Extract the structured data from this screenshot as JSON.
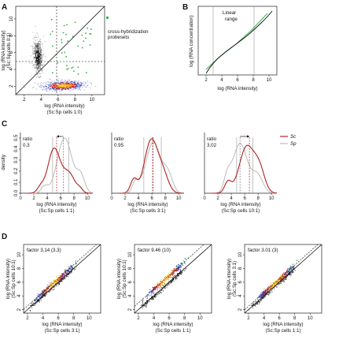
{
  "panels": {
    "A": {
      "label": "A",
      "xticks": [
        "2",
        "4",
        "6",
        "8",
        "10"
      ],
      "yticks": [
        "2",
        "4",
        "6",
        "8",
        "10"
      ],
      "xlabel": [
        "log (RNA intensity)",
        "(Sc:Sp cells 1:0)"
      ],
      "ylabel": [
        "log (RNA intensity)",
        "(Sc:Sp cells 0:1)"
      ],
      "annotation": [
        "cross-hybridization",
        "probesets"
      ]
    },
    "B": {
      "label": "B",
      "xticks": [
        "2",
        "4",
        "6",
        "8",
        "10"
      ],
      "ylabel": "log (RNA concentration)",
      "xlabel": "log (RNA intensity)",
      "range_label": [
        "Linear",
        "range"
      ]
    },
    "C": {
      "label": "C",
      "yticks": [
        "0.0",
        "0.1",
        "0.2",
        "0.3",
        "0.4",
        "0.5"
      ],
      "xticks": [
        "0",
        "2",
        "4",
        "6",
        "8",
        "10"
      ],
      "ylabel": "density",
      "legend": [
        "Sc",
        "Sp"
      ],
      "subplots": [
        {
          "ratio_label": "ratio",
          "ratio": "0.3",
          "xlabel": [
            "log (RNA intensity)",
            "(Sc:Sp cells 1:1)"
          ]
        },
        {
          "ratio_label": "ratio",
          "ratio": "0.95",
          "xlabel": [
            "log (RNA intensity)",
            "(Sc:Sp cells 3:1)"
          ]
        },
        {
          "ratio_label": "ratio",
          "ratio": "3.02",
          "xlabel": [
            "log (RNA intensity)",
            "(Sc:Sp cells 10:1)"
          ]
        }
      ]
    },
    "D": {
      "label": "D",
      "xticks": [
        "2",
        "4",
        "6",
        "8",
        "10"
      ],
      "yticks": [
        "2",
        "4",
        "6",
        "8",
        "10"
      ],
      "subplots": [
        {
          "factor": "factor 3.14 (3.3)",
          "ylabel": [
            "log (RNA intensity)",
            "(Sc:Sp cells 10:1)"
          ],
          "xlabel": [
            "log (RNA intensity)",
            "(Sc:Sp cells 3:1)"
          ]
        },
        {
          "factor": "factor 9.46 (10)",
          "ylabel": [
            "log (RNA intensity)",
            "(Sc:Sp cells 10:1)"
          ],
          "xlabel": [
            "log (RNA intensity)",
            "(Sc:Sp cells 1:1)"
          ]
        },
        {
          "factor": "factor 3.01 (3)",
          "ylabel": [
            "log (RNA intensity)",
            "(Sc:Sp cells 3:1)"
          ],
          "xlabel": [
            "log (RNA intensity)",
            "(Sc:Sp cells 1:1)"
          ]
        }
      ]
    }
  },
  "colors": {
    "sc": "#b22222",
    "sp": "#bbbbbb",
    "green": "#3cb44b",
    "blue": "#3344bb",
    "orange": "#f07a10",
    "red": "#cc1010",
    "yellow": "#ffd21a"
  }
}
